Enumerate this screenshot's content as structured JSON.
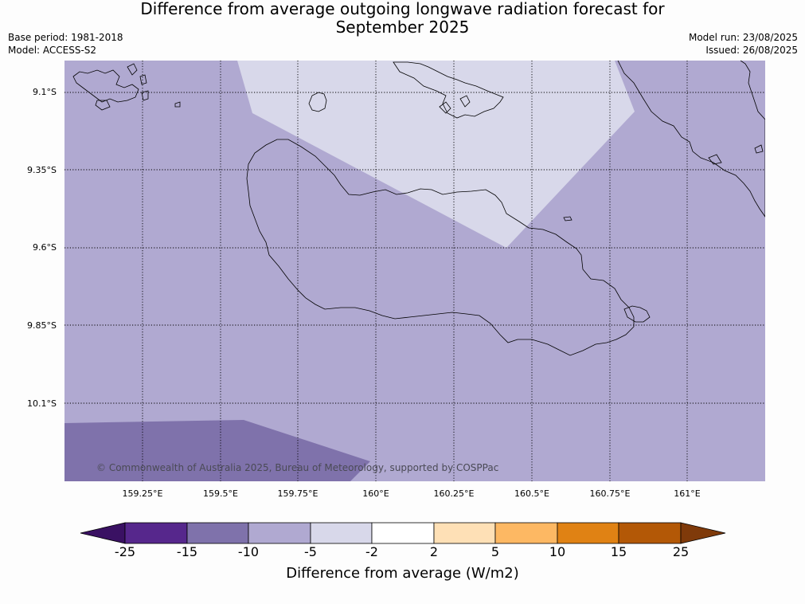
{
  "title": {
    "line1": "Difference from average outgoing longwave radiation forecast for",
    "line2": "September 2025"
  },
  "meta": {
    "base_period": "Base period: 1981-2018",
    "model": "Model: ACCESS-S2",
    "model_run": "Model run: 23/08/2025",
    "issued": "Issued: 26/08/2025"
  },
  "map": {
    "lat_labels": [
      "9.1°S",
      "9.35°S",
      "9.6°S",
      "9.85°S",
      "10.1°S"
    ],
    "lon_labels": [
      "159.25°E",
      "159.5°E",
      "159.75°E",
      "160°E",
      "160.25°E",
      "160.5°E",
      "160.75°E",
      "161°E"
    ],
    "copyright": "© Commonwealth of Australia 2025, Bureau of Meteorology, supported by COSPPac",
    "category_colors": {
      "-10 to -5": "#b0a9d1",
      "-5 to -2": "#d8d8ea",
      "-15 to -10": "#7f72ab"
    },
    "coastline_color": "#000000",
    "grid": "dotted"
  },
  "colorbar": {
    "ticks": [
      "-25",
      "-15",
      "-10",
      "-5",
      "-2",
      "2",
      "5",
      "10",
      "15",
      "25"
    ],
    "extend_min_color": "#3a1163",
    "extend_max_color": "#7f3a0a",
    "colors": [
      "#56278c",
      "#7f72ab",
      "#b0a9d1",
      "#d8d8ea",
      "#ffffff",
      "#fee0b6",
      "#fdb863",
      "#e08214",
      "#b35806"
    ],
    "label": "Difference from average (W/m2)"
  }
}
